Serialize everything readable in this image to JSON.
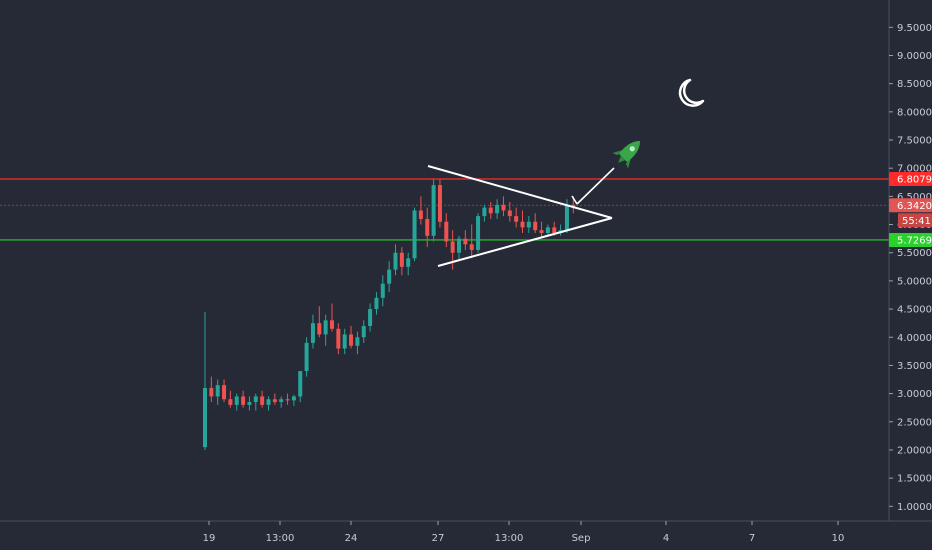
{
  "chart_data": {
    "type": "candlestick",
    "y_ticks": [
      "1.0000",
      "1.5000",
      "2.0000",
      "2.5000",
      "3.0000",
      "3.5000",
      "4.0000",
      "4.5000",
      "5.0000",
      "5.5000",
      "6.0000",
      "6.5000",
      "7.0000",
      "7.5000",
      "8.0000",
      "8.5000",
      "9.0000",
      "9.5000"
    ],
    "x_ticks": [
      "19",
      "13:00",
      "24",
      "27",
      "13:00",
      "Sep",
      "4",
      "7",
      "10"
    ],
    "ylim": [
      0.75,
      9.9
    ],
    "levels": [
      {
        "label": "6.8079",
        "value": 6.8079,
        "color": "#ff2a2a"
      },
      {
        "label": "6.3420",
        "value": 6.342,
        "color": "#e05555"
      },
      {
        "label": "5.7269",
        "value": 5.7269,
        "color": "#2bd12b"
      }
    ],
    "countdown": "55:41",
    "candles": [
      [
        2.05,
        4.45,
        2.0,
        3.1
      ],
      [
        3.1,
        3.3,
        2.85,
        2.95
      ],
      [
        2.95,
        3.25,
        2.8,
        3.15
      ],
      [
        3.15,
        3.25,
        2.85,
        2.9
      ],
      [
        2.9,
        3.05,
        2.75,
        2.8
      ],
      [
        2.8,
        3.0,
        2.7,
        2.95
      ],
      [
        2.95,
        3.05,
        2.75,
        2.8
      ],
      [
        2.8,
        2.95,
        2.7,
        2.85
      ],
      [
        2.85,
        3.0,
        2.7,
        2.95
      ],
      [
        2.95,
        3.05,
        2.75,
        2.8
      ],
      [
        2.8,
        2.95,
        2.7,
        2.9
      ],
      [
        2.9,
        3.0,
        2.8,
        2.85
      ],
      [
        2.85,
        2.95,
        2.75,
        2.9
      ],
      [
        2.9,
        3.0,
        2.8,
        2.88
      ],
      [
        2.88,
        2.98,
        2.78,
        2.95
      ],
      [
        2.95,
        3.4,
        2.85,
        3.4
      ],
      [
        3.4,
        4.0,
        3.3,
        3.9
      ],
      [
        3.9,
        4.4,
        3.8,
        4.25
      ],
      [
        4.25,
        4.55,
        4.0,
        4.05
      ],
      [
        4.05,
        4.4,
        3.85,
        4.3
      ],
      [
        4.3,
        4.6,
        4.1,
        4.15
      ],
      [
        4.15,
        4.25,
        3.7,
        3.8
      ],
      [
        3.8,
        4.15,
        3.7,
        4.05
      ],
      [
        4.05,
        4.2,
        3.8,
        3.85
      ],
      [
        3.85,
        4.1,
        3.7,
        4.0
      ],
      [
        4.0,
        4.3,
        3.9,
        4.2
      ],
      [
        4.2,
        4.6,
        4.1,
        4.5
      ],
      [
        4.5,
        4.8,
        4.4,
        4.7
      ],
      [
        4.7,
        5.1,
        4.55,
        4.95
      ],
      [
        4.95,
        5.35,
        4.8,
        5.2
      ],
      [
        5.2,
        5.65,
        5.1,
        5.5
      ],
      [
        5.5,
        5.6,
        5.1,
        5.25
      ],
      [
        5.25,
        5.5,
        5.1,
        5.4
      ],
      [
        5.4,
        6.3,
        5.35,
        6.25
      ],
      [
        6.25,
        6.5,
        6.0,
        6.1
      ],
      [
        6.1,
        6.3,
        5.6,
        5.8
      ],
      [
        5.8,
        6.8,
        5.7,
        6.7
      ],
      [
        6.7,
        6.8,
        5.95,
        6.05
      ],
      [
        6.05,
        6.2,
        5.6,
        5.7
      ],
      [
        5.7,
        5.9,
        5.2,
        5.5
      ],
      [
        5.5,
        5.8,
        5.35,
        5.75
      ],
      [
        5.75,
        5.9,
        5.55,
        5.65
      ],
      [
        5.65,
        6.0,
        5.4,
        5.55
      ],
      [
        5.55,
        6.2,
        5.5,
        6.15
      ],
      [
        6.15,
        6.35,
        6.05,
        6.3
      ],
      [
        6.3,
        6.4,
        6.1,
        6.2
      ],
      [
        6.2,
        6.45,
        6.1,
        6.35
      ],
      [
        6.35,
        6.5,
        6.15,
        6.25
      ],
      [
        6.25,
        6.4,
        6.05,
        6.15
      ],
      [
        6.15,
        6.3,
        5.95,
        6.05
      ],
      [
        6.05,
        6.25,
        5.85,
        5.95
      ],
      [
        5.95,
        6.15,
        5.85,
        6.05
      ],
      [
        6.05,
        6.2,
        5.85,
        5.9
      ],
      [
        5.9,
        6.05,
        5.75,
        5.85
      ],
      [
        5.85,
        6.0,
        5.8,
        5.95
      ],
      [
        5.95,
        6.05,
        5.8,
        5.85
      ],
      [
        5.85,
        6.0,
        5.8,
        5.9
      ],
      [
        5.9,
        6.45,
        5.85,
        6.35
      ],
      [
        6.35,
        6.5,
        6.2,
        6.32
      ]
    ]
  }
}
